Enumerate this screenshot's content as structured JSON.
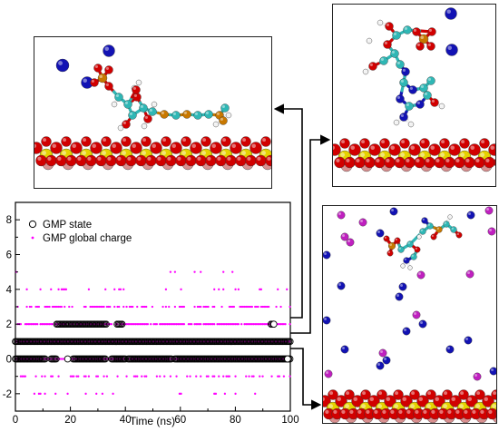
{
  "colors": {
    "gmp_state": "#000000",
    "gmp_global_charge": "#ff00ff",
    "oxygen": "#d10000",
    "silicon": "#e6d200",
    "carbon": "#2fb7b5",
    "nitrogen": "#1a1aa8",
    "phosphorus": "#c87800",
    "hydrogen": "#f2f2f2",
    "sodium": "#1212b4",
    "chloride_or_other": "#c020c0",
    "substrate_pink": "#d99090",
    "arrow": "#000000"
  },
  "snapshots": [
    {
      "id": "top-left",
      "connects_to_state": 2
    },
    {
      "id": "top-right",
      "connects_to_state": 1
    },
    {
      "id": "bottom-right",
      "connects_to_state": 0
    }
  ],
  "chart_data": {
    "type": "scatter",
    "xlabel": "Time (ns)",
    "ylabel": "",
    "xlim": [
      0,
      100
    ],
    "ylim": [
      -3,
      9
    ],
    "xticks": [
      "0",
      "20",
      "40",
      "60",
      "80",
      "100"
    ],
    "yticks": [
      "-2",
      "0",
      "2",
      "4",
      "6",
      "8"
    ],
    "legend": {
      "placement": "top-left",
      "entries": [
        "GMP state",
        "GMP global charge"
      ]
    },
    "series": [
      {
        "name": "GMP state",
        "marker": "open-circle",
        "segments": [
          {
            "y": 0,
            "ranges": [
              [
                0,
                11
              ],
              [
                13,
                15
              ],
              [
                21,
                33
              ],
              [
                35,
                40
              ],
              [
                41,
                57
              ],
              [
                58,
                100
              ]
            ]
          },
          {
            "y": 1,
            "ranges": [
              [
                0,
                100
              ]
            ]
          },
          {
            "y": 2,
            "ranges": [
              [
                15,
                33
              ],
              [
                37,
                39
              ],
              [
                93,
                94
              ]
            ]
          }
        ],
        "isolated_points": [
          {
            "x": 19,
            "y": 0
          },
          {
            "x": 94,
            "y": 2
          },
          {
            "x": 99,
            "y": 0
          }
        ]
      },
      {
        "name": "GMP global charge",
        "marker": "dot",
        "levels": [
          {
            "y": 5,
            "density": 0.05
          },
          {
            "y": 4,
            "density": 0.12
          },
          {
            "y": 3,
            "density": 0.55
          },
          {
            "y": 2,
            "density": 0.85
          },
          {
            "y": 1,
            "density": 1.0
          },
          {
            "y": 0,
            "density": 1.0
          },
          {
            "y": -1,
            "density": 0.4
          },
          {
            "y": -2,
            "density": 0.08
          }
        ]
      }
    ]
  }
}
